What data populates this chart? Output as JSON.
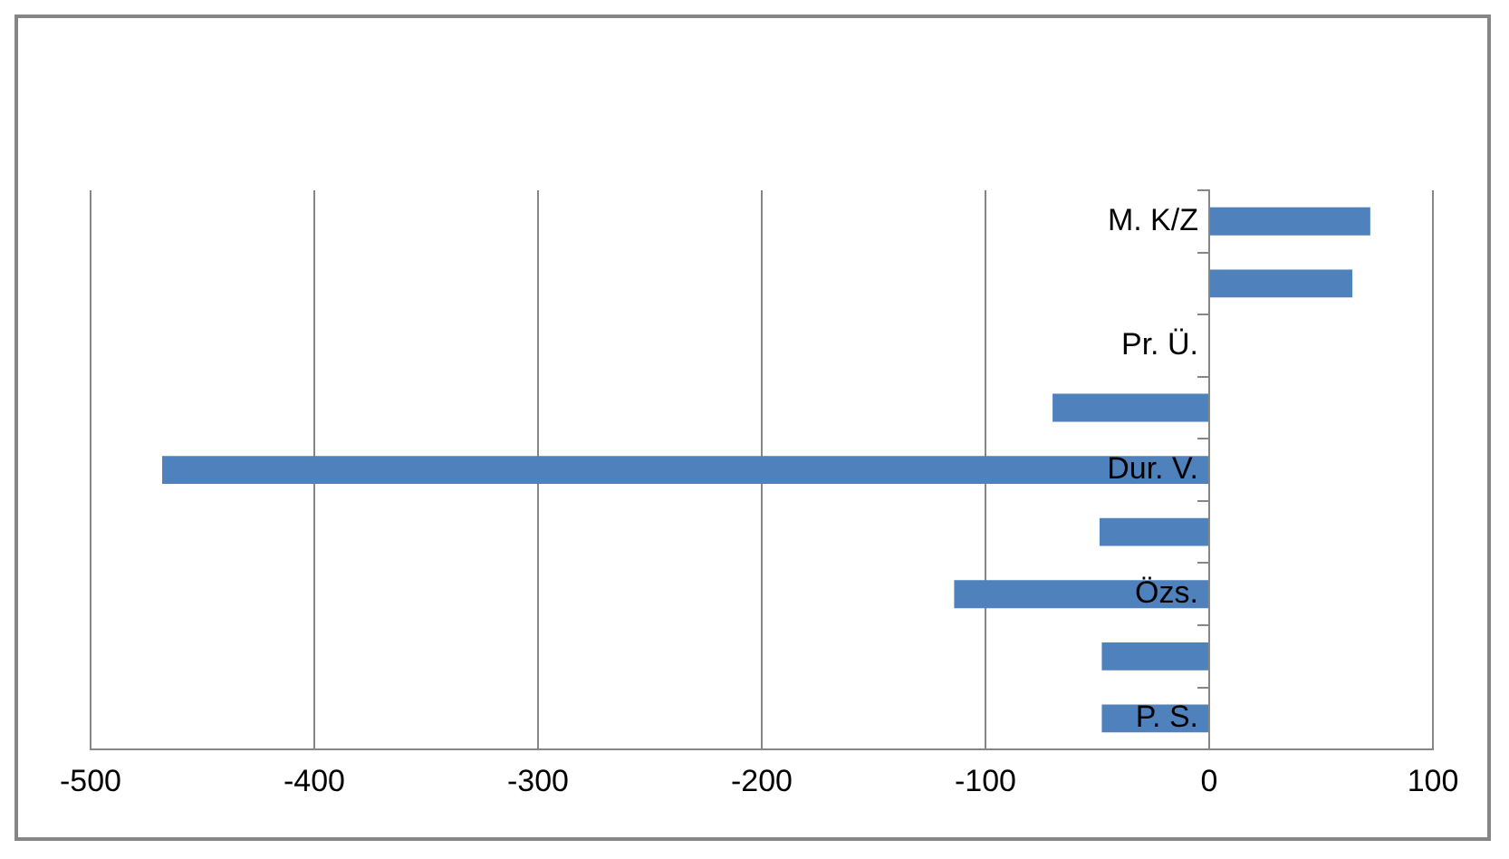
{
  "chart_data": {
    "type": "bar",
    "orientation": "horizontal",
    "categories": [
      "M. K/Z",
      null,
      "Pr. Ü.",
      null,
      "Dur. V.",
      null,
      "Özs.",
      null,
      "P. S."
    ],
    "values": [
      72,
      64,
      0,
      -70,
      -468,
      -49,
      -114,
      -48,
      -48
    ],
    "color": "#4f81bd",
    "xlim": [
      -500,
      100
    ],
    "xticks": [
      -500,
      -400,
      -300,
      -200,
      -100,
      0,
      100
    ],
    "grid": "x",
    "legend": false
  }
}
